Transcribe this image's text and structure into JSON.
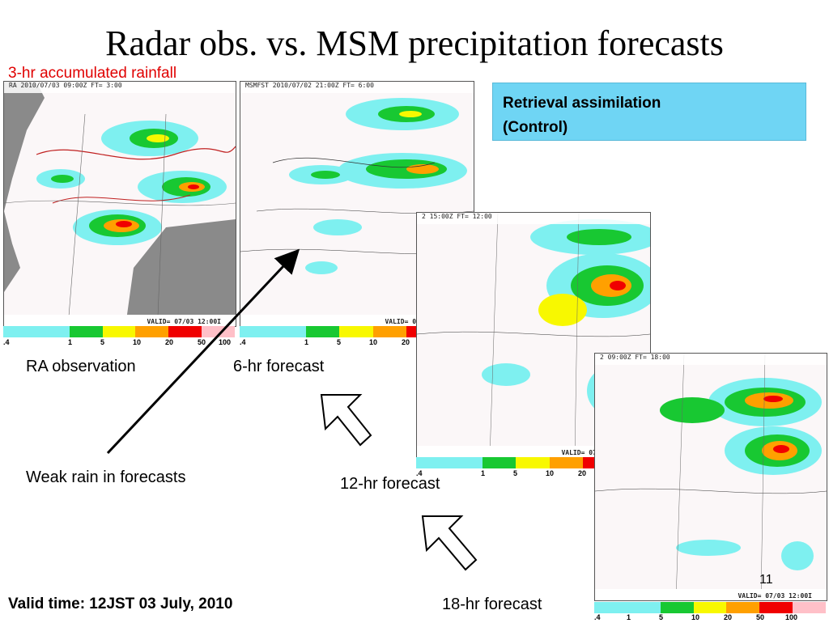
{
  "slide": {
    "title": "Radar obs. vs. MSM precipitation forecasts",
    "subtitle": "3-hr accumulated rainfall",
    "box_line1": "Retrieval assimilation",
    "box_line2": "(Control)",
    "label_ra": "RA observation",
    "label_6hr": "6-hr  forecast",
    "label_12hr": "12-hr  forecast",
    "label_18hr": "18-hr  forecast",
    "label_weak": "Weak rain in forecasts",
    "valid_time": "Valid time: 12JST 03 July, 2010",
    "page_number": "11"
  },
  "panels": {
    "obs_header": "RA 2010/07/03 09:00Z FT=  3:00",
    "f6_header": "MSMFST 2010/07/02 21:00Z FT=  6:00",
    "f12_header": "2 15:00Z FT= 12:00",
    "f18_header": "2 09:00Z FT= 18:00",
    "valid_text": "VALID= 07/03 12:00I",
    "scale_ticks": [
      ".4",
      "1",
      "5",
      "10",
      "20",
      "50",
      "100"
    ],
    "scale_colors": [
      "#7ef0f0",
      "#7ef0f0",
      "#18c832",
      "#f8f800",
      "#ffa000",
      "#f00000",
      "#ffc0c8"
    ]
  }
}
